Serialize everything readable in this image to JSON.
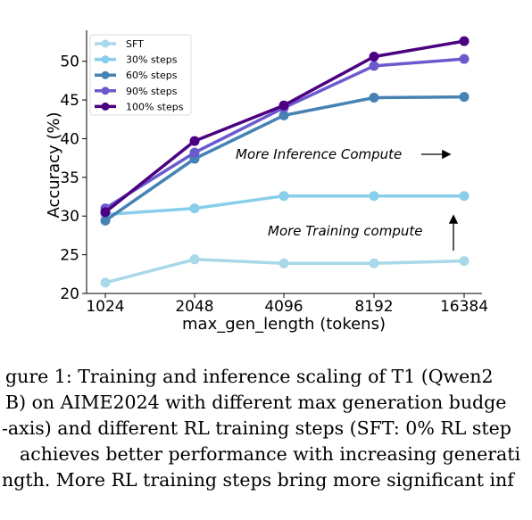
{
  "chart_data": {
    "type": "line",
    "title": "",
    "xlabel": "max_gen_length (tokens)",
    "ylabel": "Accuracy (%)",
    "categories": [
      "1024",
      "2048",
      "4096",
      "8192",
      "16384"
    ],
    "ylim": [
      20,
      54
    ],
    "yticks": [
      20,
      25,
      30,
      35,
      40,
      45,
      50
    ],
    "grid": false,
    "legend_position": "upper-left",
    "series": [
      {
        "name": "SFT",
        "color": "#a8d8ea",
        "values": [
          21.4,
          24.4,
          23.9,
          23.9,
          24.2
        ]
      },
      {
        "name": "30% steps",
        "color": "#87ceeb",
        "values": [
          30.2,
          31.0,
          32.6,
          32.6,
          32.6
        ]
      },
      {
        "name": "60% steps",
        "color": "#4682b4",
        "values": [
          29.4,
          37.4,
          43.0,
          45.3,
          45.4
        ]
      },
      {
        "name": "90% steps",
        "color": "#6a5acd",
        "values": [
          31.0,
          38.2,
          44.0,
          49.4,
          50.3
        ]
      },
      {
        "name": "100% steps",
        "color": "#4b0082",
        "values": [
          30.5,
          39.7,
          44.3,
          50.6,
          52.6
        ]
      }
    ],
    "annotations": [
      {
        "text": "More Inference Compute",
        "arrow": "right"
      },
      {
        "text": "More Training compute",
        "arrow": "up"
      }
    ]
  },
  "caption": {
    "lines": [
      "gure 1: Training and inference scaling of T1 (Qwen2",
      "B) on AIME2024 with different max generation budge",
      "-axis) and different RL training steps (SFT: 0% RL step",
      "achieves better performance with increasing generati",
      "ngth. More RL training steps bring more significant inf"
    ]
  }
}
